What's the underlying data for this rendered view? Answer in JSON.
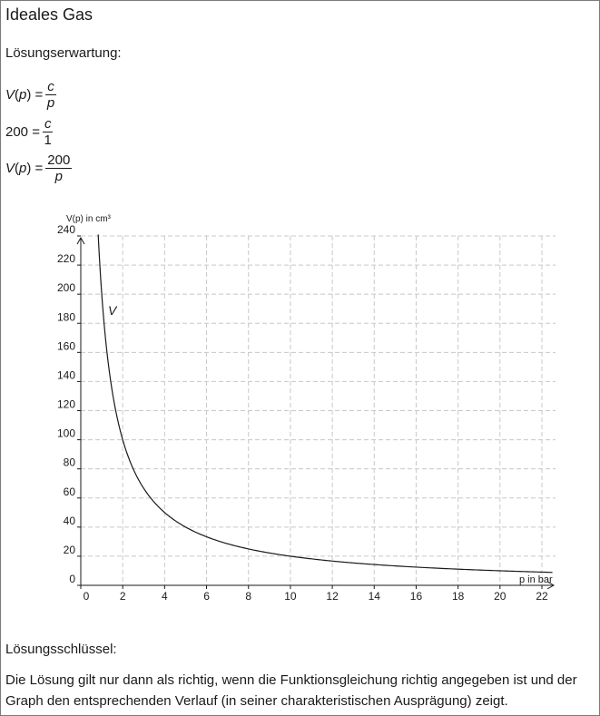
{
  "title": "Ideales Gas",
  "expected_label": "Lösungserwartung:",
  "equations": [
    {
      "lhs_prefix": "V",
      "lhs_var": "p",
      "lhs_suffix": " =",
      "num": "c",
      "den": "p",
      "num_italic": true,
      "den_italic": true
    },
    {
      "lhs_prefix": "200",
      "lhs_var": "",
      "lhs_suffix": " =",
      "num": "c",
      "den": "1",
      "num_italic": true,
      "den_italic": false
    },
    {
      "lhs_prefix": "V",
      "lhs_var": "p",
      "lhs_suffix": " =",
      "num": "200",
      "den": "p",
      "num_italic": false,
      "den_italic": true
    }
  ],
  "key_label": "Lösungsschlüssel:",
  "key_text": "Die Lösung gilt nur dann als richtig, wenn die Funktionsgleichung richtig angegeben ist und der Graph den entsprechenden Verlauf (in seiner charakteristischen Ausprägung) zeigt.",
  "chart_data": {
    "type": "line",
    "function": "V(p) = 200/p",
    "ylabel": "V(p) in cm³",
    "xlabel": "p in bar",
    "curve_label": "V",
    "x_ticks": [
      0,
      2,
      4,
      6,
      8,
      10,
      12,
      14,
      16,
      18,
      20,
      22
    ],
    "y_ticks": [
      0,
      20,
      40,
      60,
      80,
      100,
      120,
      140,
      160,
      180,
      200,
      220,
      240
    ],
    "xlim": [
      0,
      22.5
    ],
    "ylim": [
      0,
      240
    ],
    "grid": true,
    "series": [
      {
        "values_x": [
          0.83,
          1,
          1.5,
          2,
          3,
          4,
          6,
          8,
          10,
          12,
          14,
          16,
          18,
          20,
          22.5
        ],
        "values_y": [
          240,
          200,
          133.3,
          100,
          66.7,
          50,
          33.3,
          25,
          20,
          16.7,
          14.3,
          12.5,
          11.1,
          10,
          8.9
        ]
      }
    ]
  }
}
